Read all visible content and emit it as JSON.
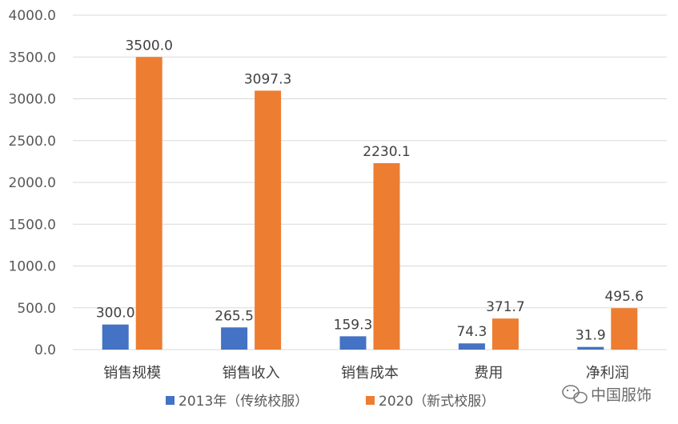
{
  "chart_data": {
    "type": "bar",
    "categories": [
      "销售规模",
      "销售收入",
      "销售成本",
      "费用",
      "净利润"
    ],
    "series": [
      {
        "name": "2013年（传统校服）",
        "color": "#4472C4",
        "values": [
          300.0,
          265.5,
          159.3,
          74.3,
          31.9
        ]
      },
      {
        "name": "2020（新式校服）",
        "color": "#ED7D31",
        "values": [
          3500.0,
          3097.3,
          2230.1,
          371.7,
          495.6
        ]
      }
    ],
    "ylim": [
      0,
      4000
    ],
    "yticks": [
      0,
      500,
      1000,
      1500,
      2000,
      2500,
      3000,
      3500,
      4000
    ],
    "tick_decimals": 1,
    "grid": true,
    "legend_position": "bottom"
  },
  "watermark": {
    "text": "中国服饰",
    "icon": "wechat-icon"
  }
}
